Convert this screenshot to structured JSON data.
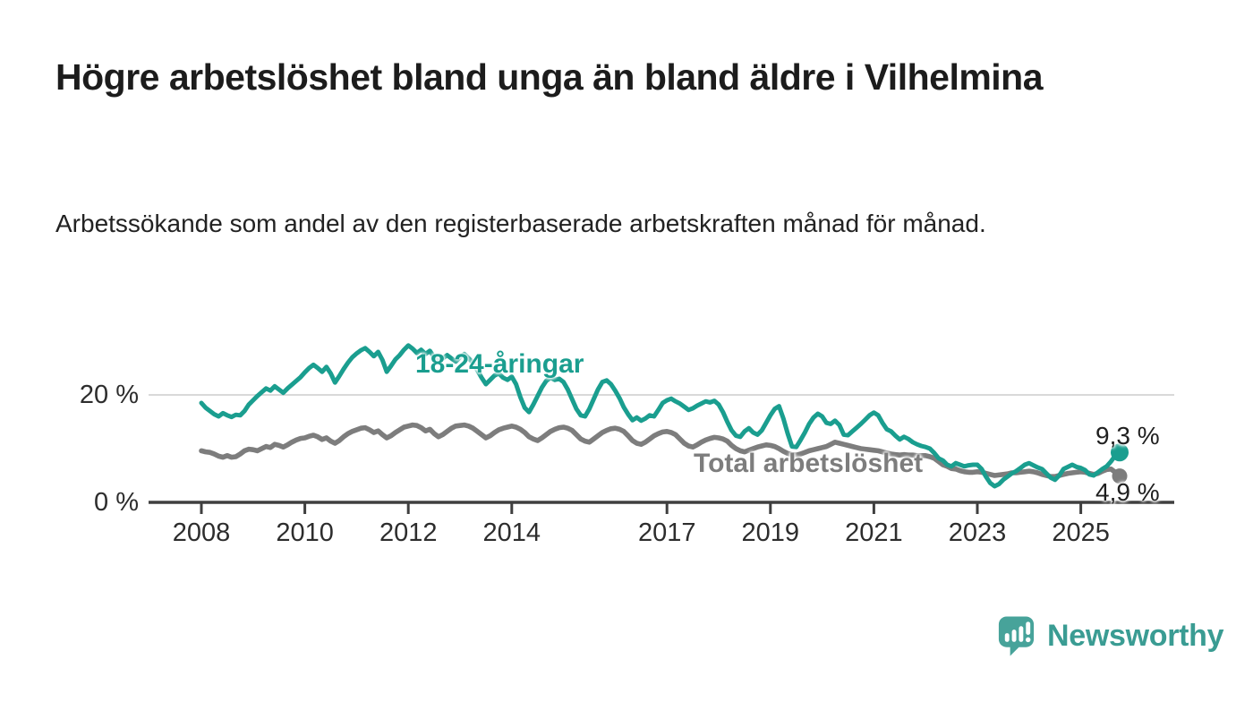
{
  "header": {
    "title": "Högre arbetslöshet bland unga än bland äldre i Vilhelmina",
    "subtitle": "Arbetssökande som andel av den registerbaserade arbetskraften månad för månad."
  },
  "chart_data": {
    "type": "line",
    "unit": "%",
    "frequency": "monthly",
    "x_start": "2008-01",
    "x_end": "2025-10",
    "x_ticks": [
      2008,
      2010,
      2012,
      2014,
      2017,
      2019,
      2021,
      2023,
      2025
    ],
    "y_axis": {
      "top_label": "20 %",
      "zero_label": "0 %",
      "top_value": 20,
      "zero_value": 0
    },
    "ylim": [
      0,
      33
    ],
    "grid": "single horizontal gridline at 20 %",
    "legend_position": "labels drawn on lines",
    "series": [
      {
        "name": "18-24-åringar",
        "label_text": "18-24-åringar",
        "color": "#1a9e8f",
        "end_label": "9,3 %",
        "end_value": 9.3,
        "values": [
          18.5,
          17.6,
          17.0,
          16.4,
          16.0,
          16.6,
          16.2,
          15.9,
          16.3,
          16.2,
          17.0,
          18.2,
          19.0,
          19.8,
          20.5,
          21.2,
          20.8,
          21.6,
          21.0,
          20.4,
          21.2,
          21.9,
          22.6,
          23.3,
          24.2,
          25.0,
          25.6,
          25.0,
          24.3,
          25.2,
          24.0,
          22.3,
          23.5,
          24.8,
          26.0,
          27.0,
          27.7,
          28.3,
          28.7,
          28.0,
          27.2,
          28.0,
          26.5,
          24.3,
          25.4,
          26.6,
          27.4,
          28.4,
          29.2,
          28.6,
          27.8,
          28.4,
          27.6,
          28.2,
          27.0,
          26.2,
          26.8,
          27.4,
          26.8,
          26.2,
          27.0,
          27.6,
          26.8,
          26.0,
          24.6,
          23.2,
          22.0,
          22.8,
          23.6,
          24.0,
          23.2,
          22.8,
          23.4,
          22.0,
          19.6,
          17.6,
          16.8,
          18.2,
          19.8,
          21.4,
          22.6,
          23.2,
          22.8,
          23.0,
          22.4,
          21.0,
          19.2,
          17.4,
          16.2,
          16.0,
          17.4,
          19.2,
          21.0,
          22.4,
          22.7,
          22.0,
          20.8,
          19.4,
          17.7,
          16.4,
          15.3,
          15.8,
          15.2,
          15.6,
          16.2,
          16.0,
          17.2,
          18.5,
          19.0,
          19.3,
          18.8,
          18.4,
          17.8,
          17.2,
          17.5,
          18.0,
          18.4,
          18.8,
          18.6,
          18.9,
          18.2,
          16.8,
          15.0,
          13.4,
          12.4,
          12.2,
          13.2,
          13.8,
          13.0,
          12.6,
          13.4,
          14.8,
          16.2,
          17.4,
          17.9,
          15.6,
          12.8,
          10.4,
          10.3,
          11.6,
          13.0,
          14.6,
          15.8,
          16.5,
          16.0,
          14.8,
          14.6,
          15.2,
          14.4,
          12.6,
          12.5,
          13.2,
          13.9,
          14.6,
          15.4,
          16.2,
          16.7,
          16.2,
          14.8,
          13.6,
          13.2,
          12.4,
          11.7,
          12.2,
          11.8,
          11.2,
          10.8,
          10.5,
          10.3,
          10.0,
          9.2,
          8.2,
          7.8,
          7.0,
          6.7,
          7.3,
          7.0,
          6.7,
          6.9,
          7.0,
          7.0,
          6.2,
          4.8,
          3.6,
          3.0,
          3.4,
          4.2,
          4.8,
          5.4,
          5.8,
          6.4,
          7.0,
          7.3,
          6.9,
          6.5,
          6.2,
          5.4,
          4.6,
          4.2,
          5.0,
          6.2,
          6.6,
          7.0,
          6.6,
          6.4,
          6.0,
          5.2,
          5.0,
          5.6,
          6.2,
          6.7,
          7.6,
          8.7,
          9.3
        ]
      },
      {
        "name": "Total arbetslöshet",
        "label_text": "Total arbetslöshet",
        "color": "#7d7d7d",
        "end_label": "4,9 %",
        "end_value": 4.9,
        "values": [
          9.6,
          9.4,
          9.3,
          9.0,
          8.6,
          8.4,
          8.7,
          8.4,
          8.5,
          9.0,
          9.6,
          9.9,
          9.8,
          9.6,
          10.0,
          10.4,
          10.2,
          10.8,
          10.6,
          10.3,
          10.7,
          11.2,
          11.6,
          11.9,
          12.0,
          12.3,
          12.5,
          12.2,
          11.7,
          12.0,
          11.4,
          11.0,
          11.5,
          12.2,
          12.8,
          13.2,
          13.5,
          13.8,
          13.9,
          13.5,
          13.0,
          13.3,
          12.6,
          12.0,
          12.4,
          13.0,
          13.5,
          14.0,
          14.2,
          14.4,
          14.3,
          13.9,
          13.3,
          13.6,
          12.8,
          12.2,
          12.6,
          13.2,
          13.8,
          14.2,
          14.3,
          14.4,
          14.2,
          13.8,
          13.2,
          12.6,
          12.0,
          12.4,
          13.0,
          13.5,
          13.8,
          14.0,
          14.2,
          14.0,
          13.6,
          13.0,
          12.2,
          11.8,
          11.5,
          12.0,
          12.6,
          13.2,
          13.6,
          13.9,
          14.0,
          13.8,
          13.4,
          12.6,
          11.8,
          11.4,
          11.2,
          11.8,
          12.4,
          13.0,
          13.4,
          13.7,
          13.8,
          13.6,
          13.2,
          12.4,
          11.5,
          11.0,
          10.8,
          11.2,
          11.8,
          12.4,
          12.8,
          13.1,
          13.2,
          13.0,
          12.6,
          11.8,
          11.0,
          10.5,
          10.3,
          10.7,
          11.2,
          11.6,
          11.9,
          12.1,
          12.0,
          11.8,
          11.4,
          10.6,
          10.0,
          9.6,
          9.4,
          9.7,
          10.0,
          10.3,
          10.5,
          10.7,
          10.6,
          10.4,
          10.0,
          9.5,
          9.1,
          8.9,
          8.8,
          9.0,
          9.3,
          9.6,
          9.8,
          10.0,
          10.2,
          10.4,
          10.8,
          11.2,
          11.0,
          10.8,
          10.6,
          10.4,
          10.2,
          10.0,
          9.9,
          9.8,
          9.7,
          9.6,
          9.4,
          9.2,
          9.0,
          8.9,
          8.8,
          8.9,
          8.8,
          8.8,
          8.7,
          8.7,
          8.7,
          8.5,
          8.2,
          7.6,
          7.0,
          6.7,
          6.3,
          6.2,
          5.9,
          5.7,
          5.6,
          5.6,
          5.7,
          5.6,
          5.4,
          5.2,
          5.0,
          5.1,
          5.2,
          5.3,
          5.5,
          5.5,
          5.6,
          5.7,
          5.8,
          5.7,
          5.5,
          5.2,
          5.0,
          4.8,
          4.8,
          5.0,
          5.2,
          5.4,
          5.5,
          5.6,
          5.7,
          5.6,
          5.4,
          5.2,
          5.4,
          5.8,
          6.1,
          6.2,
          5.6,
          4.9
        ]
      }
    ],
    "style": {
      "axis_color": "#3f3f3f",
      "gridline_color": "#d9d9d9",
      "tick_label_color": "#2d2d2d"
    }
  },
  "footer": {
    "brand": "Newsworthy",
    "logo_icon": "bar-chart-speech-bubble-icon",
    "brand_color": "#3a9c93"
  }
}
